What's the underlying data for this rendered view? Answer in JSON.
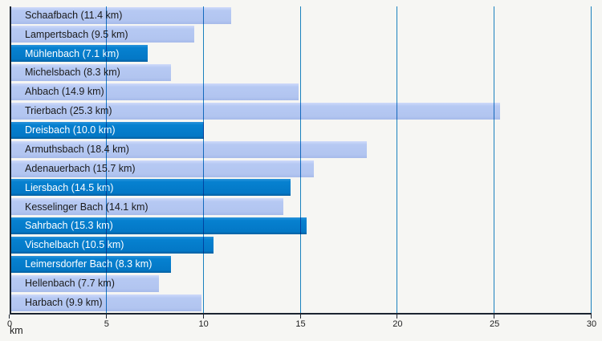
{
  "chart_data": {
    "type": "bar",
    "orientation": "horizontal",
    "title": "",
    "xlabel": "km",
    "ylabel": "",
    "xlim": [
      0,
      30
    ],
    "xticks": [
      0,
      5,
      10,
      15,
      20,
      25,
      30
    ],
    "grid": true,
    "legend": false,
    "categories": [
      "Schaafbach",
      "Lampertsbach",
      "Mühlenbach",
      "Michelsbach",
      "Ahbach",
      "Trierbach",
      "Dreisbach",
      "Armuthsbach",
      "Adenauerbach",
      "Liersbach",
      "Kesselinger Bach",
      "Sahrbach",
      "Vischelbach",
      "Leimersdorfer Bach",
      "Hellenbach",
      "Harbach"
    ],
    "values": [
      11.4,
      9.5,
      7.1,
      8.3,
      14.9,
      25.3,
      10.0,
      18.4,
      15.7,
      14.5,
      14.1,
      15.3,
      10.5,
      8.3,
      7.7,
      9.9
    ],
    "bars": [
      {
        "label": "Schaafbach (11.4 km)",
        "value": 11.4,
        "highlighted": false
      },
      {
        "label": "Lampertsbach (9.5 km)",
        "value": 9.5,
        "highlighted": false
      },
      {
        "label": "Mühlenbach (7.1 km)",
        "value": 7.1,
        "highlighted": true
      },
      {
        "label": "Michelsbach (8.3 km)",
        "value": 8.3,
        "highlighted": false
      },
      {
        "label": "Ahbach (14.9 km)",
        "value": 14.9,
        "highlighted": false
      },
      {
        "label": "Trierbach (25.3 km)",
        "value": 25.3,
        "highlighted": false
      },
      {
        "label": "Dreisbach (10.0 km)",
        "value": 10.0,
        "highlighted": true
      },
      {
        "label": "Armuthsbach (18.4 km)",
        "value": 18.4,
        "highlighted": false
      },
      {
        "label": "Adenauerbach (15.7 km)",
        "value": 15.7,
        "highlighted": false
      },
      {
        "label": "Liersbach (14.5 km)",
        "value": 14.5,
        "highlighted": true
      },
      {
        "label": "Kesselinger Bach (14.1 km)",
        "value": 14.1,
        "highlighted": false
      },
      {
        "label": "Sahrbach (15.3 km)",
        "value": 15.3,
        "highlighted": true
      },
      {
        "label": "Vischelbach (10.5 km)",
        "value": 10.5,
        "highlighted": true
      },
      {
        "label": "Leimersdorfer Bach (8.3 km)",
        "value": 8.3,
        "highlighted": true
      },
      {
        "label": "Hellenbach (7.7 km)",
        "value": 7.7,
        "highlighted": false
      },
      {
        "label": "Harbach (9.9 km)",
        "value": 9.9,
        "highlighted": false
      }
    ],
    "colors": {
      "bar_light": "#b6c9f3",
      "bar_highlight": "#0681d0",
      "gridline": "#1b86c8",
      "axis": "#1c2430",
      "text_on_light": "#1a1a1a",
      "text_on_highlight": "#ffffff",
      "background": "#f6f6f3"
    }
  }
}
